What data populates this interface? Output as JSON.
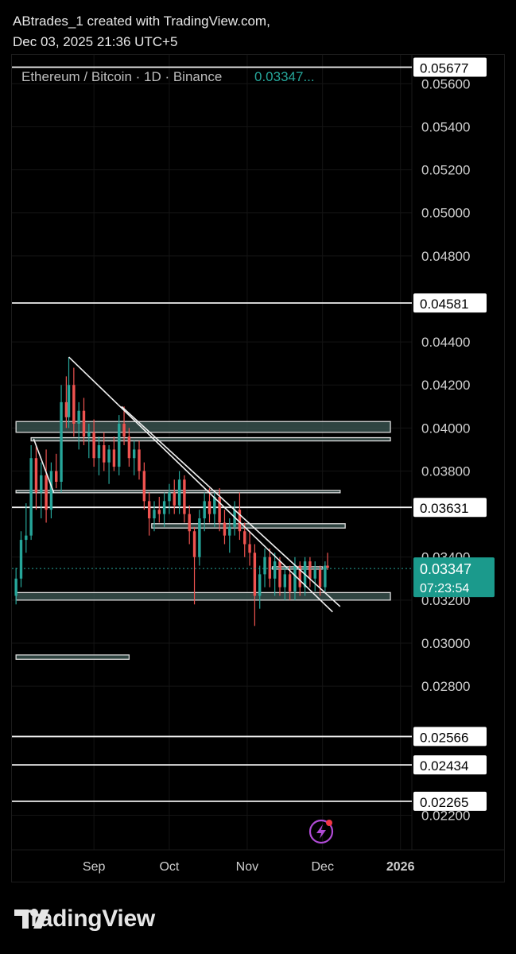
{
  "header": {
    "line1": "ABtrades_1 created with TradingView.com,",
    "line2": "Dec 03, 2025 21:36 UTC+5"
  },
  "footer": {
    "brand": "TradingView"
  },
  "chart_data": {
    "type": "candlestick",
    "title": "Ethereum / Bitcoin · 1D · Binance",
    "last_price": "0.03347",
    "countdown": "07:23:54",
    "ylim": [
      0.0215,
      0.0569
    ],
    "y_ticks": [
      "0.05600",
      "0.05400",
      "0.05200",
      "0.05000",
      "0.04800",
      "0.04400",
      "0.04200",
      "0.04000",
      "0.03800",
      "0.03400",
      "0.03200",
      "0.03000",
      "0.02800",
      "0.02200"
    ],
    "x_ticks": [
      "Sep",
      "Oct",
      "Nov",
      "Dec",
      "2026"
    ],
    "horizontal_levels": [
      "0.05677",
      "0.04581",
      "0.03631",
      "0.02566",
      "0.02434",
      "0.02265"
    ],
    "zones": [
      {
        "from": "2025-08-01",
        "to": "2025-12-28",
        "low": 0.0398,
        "high": 0.0403
      },
      {
        "from": "2025-08-07",
        "to": "2025-12-28",
        "low": 0.0394,
        "high": 0.03955
      },
      {
        "from": "2025-08-01",
        "to": "2025-12-08",
        "low": 0.037,
        "high": 0.0371
      },
      {
        "from": "2025-09-24",
        "to": "2025-12-10",
        "low": 0.03535,
        "high": 0.03555
      },
      {
        "from": "2025-11-11",
        "to": "2025-12-01",
        "low": 0.03345,
        "high": 0.03355
      },
      {
        "from": "2025-08-01",
        "to": "2025-12-28",
        "low": 0.032,
        "high": 0.03235
      },
      {
        "from": "2025-08-01",
        "to": "2025-09-15",
        "low": 0.02925,
        "high": 0.02945
      }
    ],
    "trendlines": [
      {
        "from": [
          "2025-08-22",
          0.0433
        ],
        "to": [
          "2025-12-05",
          0.03145
        ]
      },
      {
        "from": [
          "2025-09-12",
          0.041
        ],
        "to": [
          "2025-12-08",
          0.0317
        ]
      },
      {
        "from": [
          "2025-08-08",
          0.0395
        ],
        "to": [
          "2025-08-16",
          0.037
        ]
      }
    ],
    "candles": [
      {
        "t": "2025-08-01",
        "o": 0.0322,
        "h": 0.0335,
        "l": 0.0318,
        "c": 0.033
      },
      {
        "t": "2025-08-03",
        "o": 0.033,
        "h": 0.0352,
        "l": 0.0326,
        "c": 0.0348
      },
      {
        "t": "2025-08-05",
        "o": 0.0348,
        "h": 0.0365,
        "l": 0.0342,
        "c": 0.035
      },
      {
        "t": "2025-08-07",
        "o": 0.035,
        "h": 0.0392,
        "l": 0.0348,
        "c": 0.0386
      },
      {
        "t": "2025-08-09",
        "o": 0.0386,
        "h": 0.0392,
        "l": 0.0362,
        "c": 0.037
      },
      {
        "t": "2025-08-11",
        "o": 0.037,
        "h": 0.0384,
        "l": 0.0358,
        "c": 0.0378
      },
      {
        "t": "2025-08-13",
        "o": 0.0378,
        "h": 0.039,
        "l": 0.0356,
        "c": 0.0362
      },
      {
        "t": "2025-08-15",
        "o": 0.0362,
        "h": 0.0384,
        "l": 0.0358,
        "c": 0.038
      },
      {
        "t": "2025-08-17",
        "o": 0.038,
        "h": 0.0388,
        "l": 0.0372,
        "c": 0.0375
      },
      {
        "t": "2025-08-19",
        "o": 0.0375,
        "h": 0.042,
        "l": 0.037,
        "c": 0.0412
      },
      {
        "t": "2025-08-21",
        "o": 0.0412,
        "h": 0.0424,
        "l": 0.04,
        "c": 0.0405
      },
      {
        "t": "2025-08-22",
        "o": 0.0405,
        "h": 0.0433,
        "l": 0.04,
        "c": 0.042
      },
      {
        "t": "2025-08-24",
        "o": 0.042,
        "h": 0.0428,
        "l": 0.0396,
        "c": 0.0402
      },
      {
        "t": "2025-08-26",
        "o": 0.0402,
        "h": 0.0412,
        "l": 0.039,
        "c": 0.0408
      },
      {
        "t": "2025-08-28",
        "o": 0.0408,
        "h": 0.0414,
        "l": 0.0392,
        "c": 0.0396
      },
      {
        "t": "2025-08-30",
        "o": 0.0396,
        "h": 0.0402,
        "l": 0.0386,
        "c": 0.0398
      },
      {
        "t": "2025-09-01",
        "o": 0.0398,
        "h": 0.0404,
        "l": 0.0382,
        "c": 0.0386
      },
      {
        "t": "2025-09-03",
        "o": 0.0386,
        "h": 0.0396,
        "l": 0.0378,
        "c": 0.0392
      },
      {
        "t": "2025-09-05",
        "o": 0.0392,
        "h": 0.0398,
        "l": 0.038,
        "c": 0.0384
      },
      {
        "t": "2025-09-07",
        "o": 0.0384,
        "h": 0.0392,
        "l": 0.0374,
        "c": 0.039
      },
      {
        "t": "2025-09-09",
        "o": 0.039,
        "h": 0.0396,
        "l": 0.038,
        "c": 0.0382
      },
      {
        "t": "2025-09-11",
        "o": 0.0382,
        "h": 0.0406,
        "l": 0.0378,
        "c": 0.0402
      },
      {
        "t": "2025-09-13",
        "o": 0.0402,
        "h": 0.041,
        "l": 0.0392,
        "c": 0.0396
      },
      {
        "t": "2025-09-15",
        "o": 0.0396,
        "h": 0.04,
        "l": 0.0382,
        "c": 0.0386
      },
      {
        "t": "2025-09-17",
        "o": 0.0386,
        "h": 0.0394,
        "l": 0.0378,
        "c": 0.039
      },
      {
        "t": "2025-09-19",
        "o": 0.039,
        "h": 0.0394,
        "l": 0.0376,
        "c": 0.038
      },
      {
        "t": "2025-09-21",
        "o": 0.038,
        "h": 0.0384,
        "l": 0.0362,
        "c": 0.0366
      },
      {
        "t": "2025-09-23",
        "o": 0.0366,
        "h": 0.037,
        "l": 0.035,
        "c": 0.0358
      },
      {
        "t": "2025-09-25",
        "o": 0.0358,
        "h": 0.0366,
        "l": 0.0352,
        "c": 0.0362
      },
      {
        "t": "2025-09-27",
        "o": 0.0362,
        "h": 0.0368,
        "l": 0.0356,
        "c": 0.036
      },
      {
        "t": "2025-09-29",
        "o": 0.036,
        "h": 0.037,
        "l": 0.0354,
        "c": 0.0366
      },
      {
        "t": "2025-10-01",
        "o": 0.0366,
        "h": 0.0374,
        "l": 0.036,
        "c": 0.037
      },
      {
        "t": "2025-10-03",
        "o": 0.037,
        "h": 0.0376,
        "l": 0.036,
        "c": 0.0364
      },
      {
        "t": "2025-10-05",
        "o": 0.0364,
        "h": 0.038,
        "l": 0.036,
        "c": 0.0376
      },
      {
        "t": "2025-10-07",
        "o": 0.0376,
        "h": 0.0378,
        "l": 0.0356,
        "c": 0.036
      },
      {
        "t": "2025-10-09",
        "o": 0.036,
        "h": 0.0364,
        "l": 0.0346,
        "c": 0.0352
      },
      {
        "t": "2025-10-11",
        "o": 0.0352,
        "h": 0.0354,
        "l": 0.0318,
        "c": 0.034
      },
      {
        "t": "2025-10-13",
        "o": 0.034,
        "h": 0.0362,
        "l": 0.0336,
        "c": 0.0358
      },
      {
        "t": "2025-10-15",
        "o": 0.0358,
        "h": 0.037,
        "l": 0.0352,
        "c": 0.0366
      },
      {
        "t": "2025-10-17",
        "o": 0.0366,
        "h": 0.0372,
        "l": 0.0356,
        "c": 0.036
      },
      {
        "t": "2025-10-19",
        "o": 0.036,
        "h": 0.037,
        "l": 0.0354,
        "c": 0.0368
      },
      {
        "t": "2025-10-21",
        "o": 0.0368,
        "h": 0.0372,
        "l": 0.0352,
        "c": 0.0356
      },
      {
        "t": "2025-10-23",
        "o": 0.0356,
        "h": 0.0362,
        "l": 0.0346,
        "c": 0.035
      },
      {
        "t": "2025-10-25",
        "o": 0.035,
        "h": 0.0358,
        "l": 0.0342,
        "c": 0.0354
      },
      {
        "t": "2025-10-27",
        "o": 0.0354,
        "h": 0.0366,
        "l": 0.035,
        "c": 0.0362
      },
      {
        "t": "2025-10-29",
        "o": 0.0362,
        "h": 0.037,
        "l": 0.0348,
        "c": 0.0352
      },
      {
        "t": "2025-10-31",
        "o": 0.0352,
        "h": 0.0356,
        "l": 0.034,
        "c": 0.0346
      },
      {
        "t": "2025-11-02",
        "o": 0.0346,
        "h": 0.0352,
        "l": 0.0336,
        "c": 0.0342
      },
      {
        "t": "2025-11-04",
        "o": 0.0342,
        "h": 0.0346,
        "l": 0.0308,
        "c": 0.0322
      },
      {
        "t": "2025-11-06",
        "o": 0.0322,
        "h": 0.0336,
        "l": 0.0316,
        "c": 0.0332
      },
      {
        "t": "2025-11-08",
        "o": 0.0332,
        "h": 0.0344,
        "l": 0.0326,
        "c": 0.034
      },
      {
        "t": "2025-11-10",
        "o": 0.034,
        "h": 0.0344,
        "l": 0.0326,
        "c": 0.033
      },
      {
        "t": "2025-11-12",
        "o": 0.033,
        "h": 0.0342,
        "l": 0.0322,
        "c": 0.0338
      },
      {
        "t": "2025-11-14",
        "o": 0.0338,
        "h": 0.034,
        "l": 0.0322,
        "c": 0.0326
      },
      {
        "t": "2025-11-16",
        "o": 0.0326,
        "h": 0.0336,
        "l": 0.032,
        "c": 0.0332
      },
      {
        "t": "2025-11-18",
        "o": 0.0332,
        "h": 0.0336,
        "l": 0.032,
        "c": 0.0324
      },
      {
        "t": "2025-11-20",
        "o": 0.0324,
        "h": 0.034,
        "l": 0.032,
        "c": 0.0336
      },
      {
        "t": "2025-11-22",
        "o": 0.0336,
        "h": 0.0338,
        "l": 0.0322,
        "c": 0.0326
      },
      {
        "t": "2025-11-24",
        "o": 0.0326,
        "h": 0.034,
        "l": 0.0322,
        "c": 0.0338
      },
      {
        "t": "2025-11-26",
        "o": 0.0338,
        "h": 0.034,
        "l": 0.0326,
        "c": 0.033
      },
      {
        "t": "2025-11-28",
        "o": 0.033,
        "h": 0.0338,
        "l": 0.0324,
        "c": 0.0334
      },
      {
        "t": "2025-11-30",
        "o": 0.0334,
        "h": 0.0336,
        "l": 0.0322,
        "c": 0.0326
      },
      {
        "t": "2025-12-02",
        "o": 0.0326,
        "h": 0.0338,
        "l": 0.0324,
        "c": 0.0336
      },
      {
        "t": "2025-12-03",
        "o": 0.0336,
        "h": 0.0342,
        "l": 0.0334,
        "c": 0.0335
      }
    ]
  }
}
